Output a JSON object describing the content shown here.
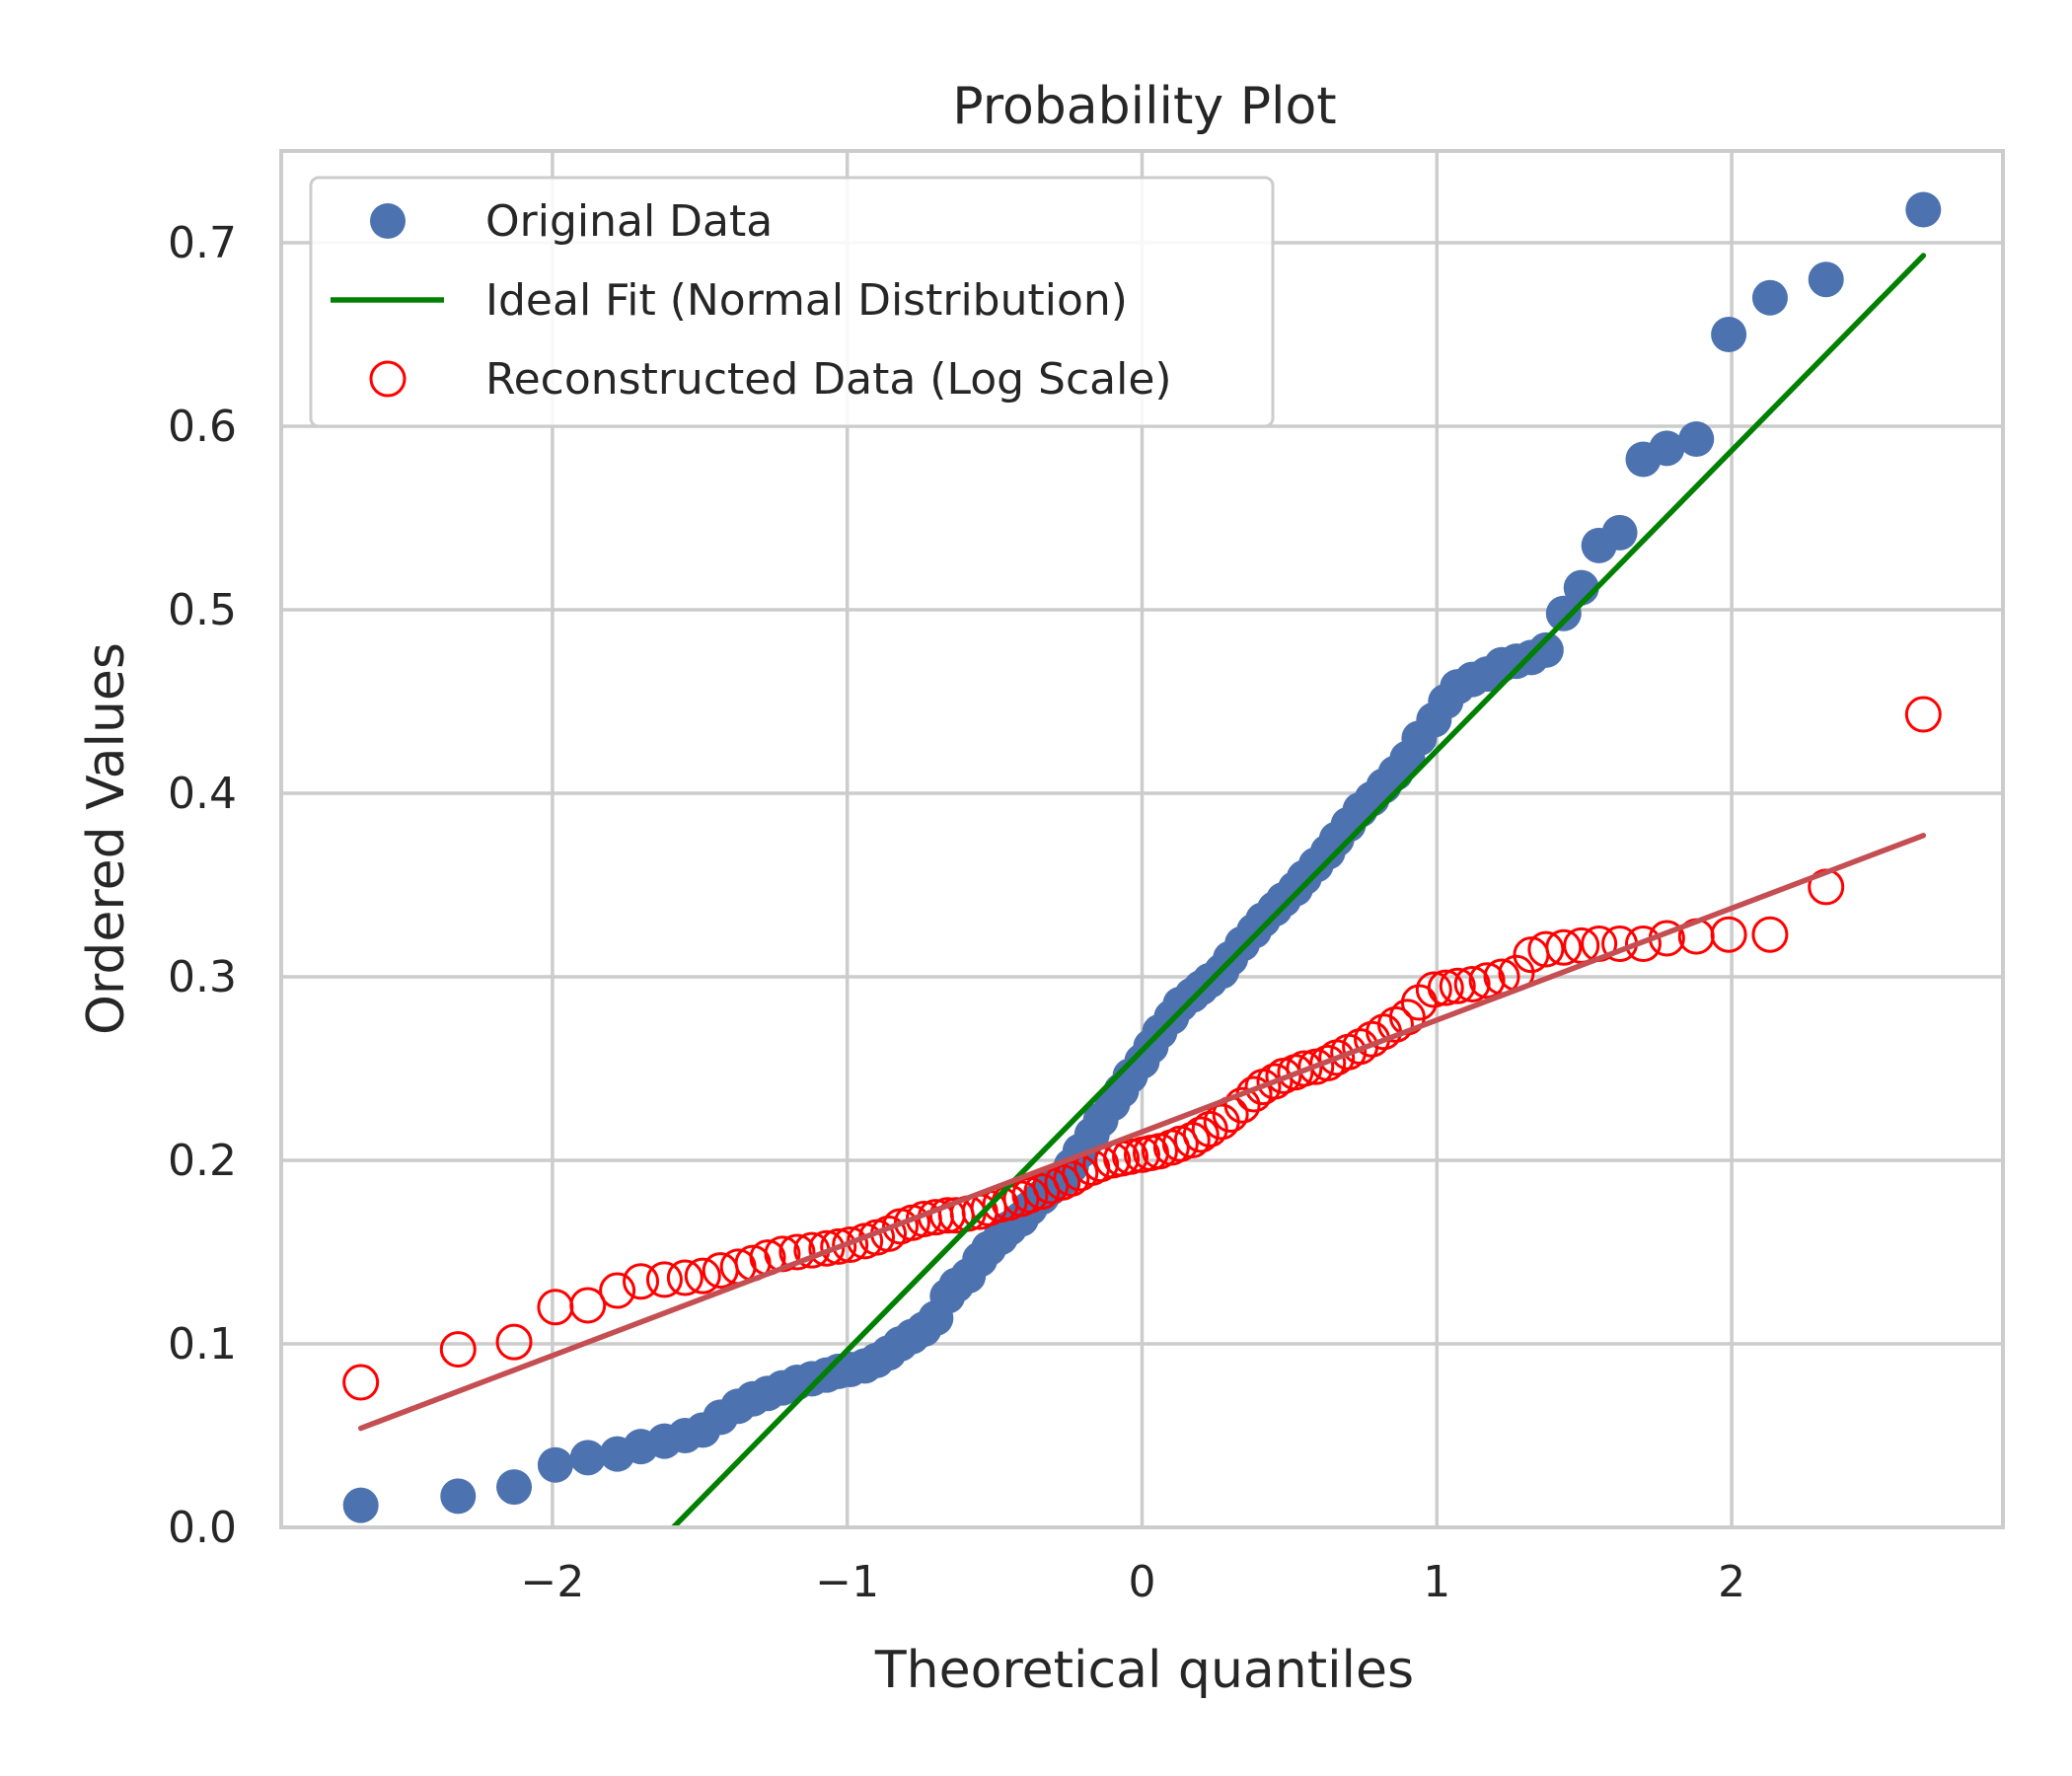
{
  "chart_data": {
    "type": "scatter",
    "title": "Probability Plot",
    "xlabel": "Theoretical quantiles",
    "ylabel": "Ordered Values",
    "xlim": [
      -2.92,
      2.92
    ],
    "ylim": [
      0.0,
      0.75
    ],
    "x_ticks": [
      -2,
      -1,
      0,
      1,
      2
    ],
    "x_tick_labels": [
      "−2",
      "−1",
      "0",
      "1",
      "2"
    ],
    "y_ticks": [
      0.0,
      0.1,
      0.2,
      0.3,
      0.4,
      0.5,
      0.6,
      0.7
    ],
    "y_tick_labels": [
      "0.0",
      "0.1",
      "0.2",
      "0.3",
      "0.4",
      "0.5",
      "0.6",
      "0.7"
    ],
    "grid": true,
    "legend_position": "top-left",
    "colors": {
      "original": "#4c72b0",
      "ideal_fit": "#008000",
      "reconstructed": "#ff0000",
      "reconstructed_fit": "#c44e52",
      "grid": "#cccccc",
      "text": "#262626"
    },
    "series": [
      {
        "name": "Original Data",
        "kind": "filled-markers",
        "color": "#4c72b0",
        "points": [
          [
            -2.65,
            0.012
          ],
          [
            -2.32,
            0.017
          ],
          [
            -2.13,
            0.022
          ],
          [
            -1.99,
            0.034
          ],
          [
            -1.88,
            0.038
          ],
          [
            -1.78,
            0.04
          ],
          [
            -1.7,
            0.044
          ],
          [
            -1.62,
            0.047
          ],
          [
            -1.55,
            0.05
          ],
          [
            -1.49,
            0.053
          ],
          [
            -1.43,
            0.06
          ],
          [
            -1.37,
            0.066
          ],
          [
            -1.32,
            0.07
          ],
          [
            -1.27,
            0.073
          ],
          [
            -1.22,
            0.076
          ],
          [
            -1.17,
            0.079
          ],
          [
            -1.12,
            0.081
          ],
          [
            -1.07,
            0.083
          ],
          [
            -1.03,
            0.085
          ],
          [
            -0.99,
            0.086
          ],
          [
            -0.94,
            0.088
          ],
          [
            -0.9,
            0.091
          ],
          [
            -0.86,
            0.095
          ],
          [
            -0.82,
            0.1
          ],
          [
            -0.78,
            0.104
          ],
          [
            -0.74,
            0.108
          ],
          [
            -0.7,
            0.114
          ],
          [
            -0.66,
            0.126
          ],
          [
            -0.63,
            0.132
          ],
          [
            -0.59,
            0.137
          ],
          [
            -0.55,
            0.146
          ],
          [
            -0.52,
            0.152
          ],
          [
            -0.48,
            0.158
          ],
          [
            -0.45,
            0.163
          ],
          [
            -0.41,
            0.168
          ],
          [
            -0.38,
            0.174
          ],
          [
            -0.34,
            0.18
          ],
          [
            -0.31,
            0.185
          ],
          [
            -0.27,
            0.19
          ],
          [
            -0.24,
            0.197
          ],
          [
            -0.21,
            0.205
          ],
          [
            -0.17,
            0.214
          ],
          [
            -0.14,
            0.222
          ],
          [
            -0.1,
            0.231
          ],
          [
            -0.07,
            0.238
          ],
          [
            -0.04,
            0.246
          ],
          [
            0.0,
            0.254
          ],
          [
            0.03,
            0.262
          ],
          [
            0.06,
            0.27
          ],
          [
            0.1,
            0.278
          ],
          [
            0.13,
            0.285
          ],
          [
            0.17,
            0.29
          ],
          [
            0.2,
            0.294
          ],
          [
            0.23,
            0.298
          ],
          [
            0.27,
            0.303
          ],
          [
            0.3,
            0.31
          ],
          [
            0.34,
            0.318
          ],
          [
            0.38,
            0.325
          ],
          [
            0.41,
            0.331
          ],
          [
            0.45,
            0.337
          ],
          [
            0.48,
            0.342
          ],
          [
            0.52,
            0.348
          ],
          [
            0.55,
            0.354
          ],
          [
            0.59,
            0.361
          ],
          [
            0.63,
            0.368
          ],
          [
            0.66,
            0.375
          ],
          [
            0.7,
            0.383
          ],
          [
            0.74,
            0.391
          ],
          [
            0.78,
            0.397
          ],
          [
            0.82,
            0.404
          ],
          [
            0.86,
            0.411
          ],
          [
            0.9,
            0.419
          ],
          [
            0.94,
            0.43
          ],
          [
            0.99,
            0.44
          ],
          [
            1.03,
            0.45
          ],
          [
            1.07,
            0.458
          ],
          [
            1.12,
            0.462
          ],
          [
            1.17,
            0.465
          ],
          [
            1.22,
            0.47
          ],
          [
            1.27,
            0.472
          ],
          [
            1.32,
            0.474
          ],
          [
            1.37,
            0.478
          ],
          [
            1.43,
            0.498
          ],
          [
            1.49,
            0.512
          ],
          [
            1.55,
            0.535
          ],
          [
            1.62,
            0.542
          ],
          [
            1.7,
            0.582
          ],
          [
            1.78,
            0.588
          ],
          [
            1.88,
            0.593
          ],
          [
            1.99,
            0.65
          ],
          [
            2.13,
            0.67
          ],
          [
            2.32,
            0.68
          ],
          [
            2.65,
            0.718
          ]
        ]
      },
      {
        "name": "Ideal Fit (Normal Distribution)",
        "kind": "line",
        "color": "#008000",
        "points": [
          [
            -1.59,
            0.0
          ],
          [
            2.65,
            0.693
          ]
        ]
      },
      {
        "name": "Reconstructed Data (Log Scale)",
        "kind": "hollow-markers",
        "color": "#ff0000",
        "points": [
          [
            -2.65,
            0.079
          ],
          [
            -2.32,
            0.097
          ],
          [
            -2.13,
            0.101
          ],
          [
            -1.99,
            0.12
          ],
          [
            -1.88,
            0.121
          ],
          [
            -1.78,
            0.129
          ],
          [
            -1.7,
            0.134
          ],
          [
            -1.62,
            0.135
          ],
          [
            -1.55,
            0.136
          ],
          [
            -1.49,
            0.137
          ],
          [
            -1.43,
            0.14
          ],
          [
            -1.37,
            0.142
          ],
          [
            -1.32,
            0.144
          ],
          [
            -1.27,
            0.147
          ],
          [
            -1.22,
            0.149
          ],
          [
            -1.17,
            0.15
          ],
          [
            -1.12,
            0.151
          ],
          [
            -1.07,
            0.152
          ],
          [
            -1.03,
            0.153
          ],
          [
            -0.99,
            0.154
          ],
          [
            -0.94,
            0.156
          ],
          [
            -0.9,
            0.158
          ],
          [
            -0.86,
            0.16
          ],
          [
            -0.82,
            0.164
          ],
          [
            -0.78,
            0.166
          ],
          [
            -0.74,
            0.168
          ],
          [
            -0.7,
            0.169
          ],
          [
            -0.66,
            0.17
          ],
          [
            -0.63,
            0.17
          ],
          [
            -0.59,
            0.171
          ],
          [
            -0.55,
            0.172
          ],
          [
            -0.52,
            0.174
          ],
          [
            -0.48,
            0.176
          ],
          [
            -0.45,
            0.177
          ],
          [
            -0.41,
            0.179
          ],
          [
            -0.38,
            0.181
          ],
          [
            -0.34,
            0.183
          ],
          [
            -0.31,
            0.186
          ],
          [
            -0.27,
            0.188
          ],
          [
            -0.24,
            0.19
          ],
          [
            -0.21,
            0.193
          ],
          [
            -0.17,
            0.196
          ],
          [
            -0.14,
            0.198
          ],
          [
            -0.1,
            0.2
          ],
          [
            -0.07,
            0.201
          ],
          [
            -0.04,
            0.202
          ],
          [
            0.0,
            0.203
          ],
          [
            0.03,
            0.204
          ],
          [
            0.06,
            0.205
          ],
          [
            0.1,
            0.207
          ],
          [
            0.13,
            0.209
          ],
          [
            0.17,
            0.211
          ],
          [
            0.2,
            0.214
          ],
          [
            0.23,
            0.217
          ],
          [
            0.27,
            0.221
          ],
          [
            0.3,
            0.225
          ],
          [
            0.34,
            0.23
          ],
          [
            0.38,
            0.236
          ],
          [
            0.41,
            0.24
          ],
          [
            0.45,
            0.243
          ],
          [
            0.48,
            0.246
          ],
          [
            0.52,
            0.248
          ],
          [
            0.55,
            0.25
          ],
          [
            0.59,
            0.251
          ],
          [
            0.63,
            0.253
          ],
          [
            0.66,
            0.256
          ],
          [
            0.7,
            0.259
          ],
          [
            0.74,
            0.262
          ],
          [
            0.78,
            0.266
          ],
          [
            0.82,
            0.27
          ],
          [
            0.86,
            0.274
          ],
          [
            0.9,
            0.278
          ],
          [
            0.94,
            0.286
          ],
          [
            0.99,
            0.293
          ],
          [
            1.03,
            0.294
          ],
          [
            1.07,
            0.295
          ],
          [
            1.12,
            0.296
          ],
          [
            1.17,
            0.298
          ],
          [
            1.22,
            0.3
          ],
          [
            1.27,
            0.302
          ],
          [
            1.32,
            0.312
          ],
          [
            1.37,
            0.315
          ],
          [
            1.43,
            0.316
          ],
          [
            1.49,
            0.317
          ],
          [
            1.55,
            0.318
          ],
          [
            1.62,
            0.318
          ],
          [
            1.7,
            0.318
          ],
          [
            1.78,
            0.321
          ],
          [
            1.88,
            0.322
          ],
          [
            1.99,
            0.323
          ],
          [
            2.13,
            0.323
          ],
          [
            2.32,
            0.349
          ],
          [
            2.65,
            0.443
          ]
        ]
      },
      {
        "name": "",
        "kind": "line",
        "color": "#c44e52",
        "points": [
          [
            -2.65,
            0.054
          ],
          [
            2.65,
            0.377
          ]
        ]
      }
    ]
  }
}
